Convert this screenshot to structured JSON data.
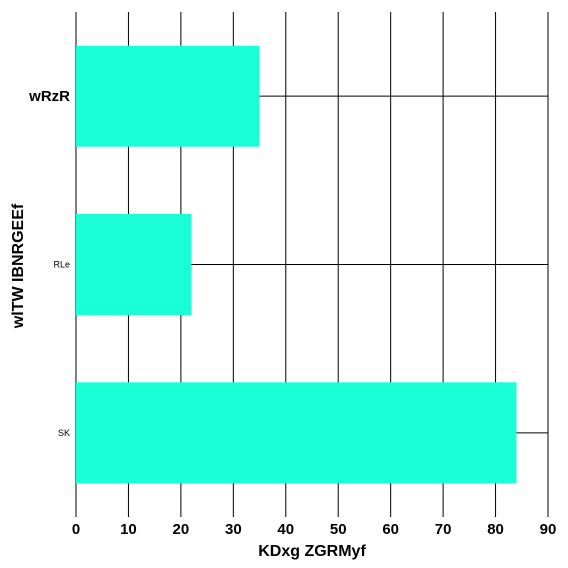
{
  "chart_data": {
    "type": "bar",
    "orientation": "horizontal",
    "categories": [
      "wRzR",
      "RLe",
      "SK"
    ],
    "values": [
      35,
      22,
      84
    ],
    "xlabel": "KDxg ZGRMyf",
    "ylabel": "wlTW IBNRGEEf",
    "xlim": [
      0,
      90
    ],
    "xticks": [
      "0",
      "10",
      "20",
      "30",
      "40",
      "50",
      "60",
      "70",
      "80",
      "90"
    ],
    "grid": true,
    "bar_color": "#1affd5",
    "category_label_sizes": [
      "large",
      "small",
      "small"
    ]
  }
}
